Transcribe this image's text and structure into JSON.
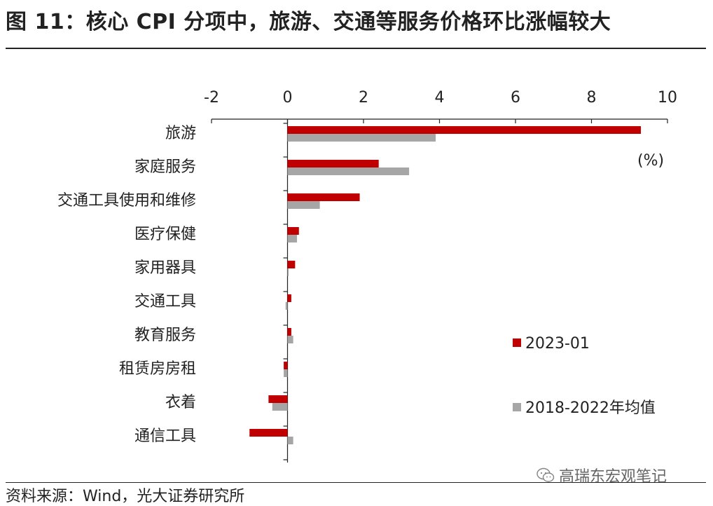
{
  "title": "图 11：核心 CPI 分项中，旅游、交通等服务价格环比涨幅较大",
  "source": "资料来源：Wind，光大证券研究所",
  "watermark": "高瑞东宏观笔记",
  "chart_data": {
    "type": "bar",
    "orientation": "horizontal",
    "unit": "(%)",
    "xlim": [
      -2,
      10
    ],
    "xticks": [
      -2,
      0,
      2,
      4,
      6,
      8,
      10
    ],
    "categories": [
      "旅游",
      "家庭服务",
      "交通工具使用和维修",
      "医疗保健",
      "家用器具",
      "交通工具",
      "教育服务",
      "租赁房房租",
      "衣着",
      "通信工具"
    ],
    "series": [
      {
        "name": "2023-01",
        "color": "#c00000",
        "values": [
          9.3,
          2.4,
          1.9,
          0.3,
          0.2,
          0.1,
          0.1,
          -0.1,
          -0.5,
          -1.0
        ]
      },
      {
        "name": "2018-2022年均值",
        "color": "#a6a6a6",
        "values": [
          3.9,
          3.2,
          0.85,
          0.25,
          0.0,
          -0.05,
          0.15,
          -0.1,
          -0.4,
          0.15
        ]
      }
    ],
    "legend_position": "bottom-right",
    "grid": false
  }
}
